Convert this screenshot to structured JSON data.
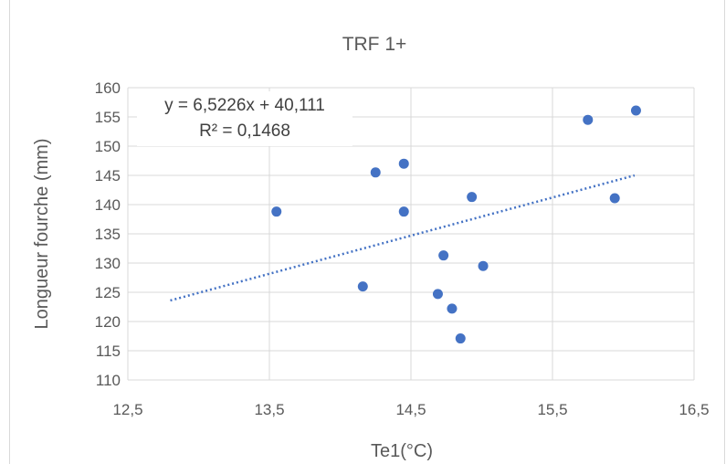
{
  "chart_data": {
    "type": "scatter",
    "title": "TRF 1+",
    "xlabel": "Te1(°C)",
    "ylabel": "Longueur fourche (mm)",
    "xlim": [
      12.5,
      16.5
    ],
    "ylim": [
      110,
      160
    ],
    "x_ticks": [
      "12,5",
      "13,5",
      "14,5",
      "15,5",
      "16,5"
    ],
    "y_ticks": [
      "110",
      "115",
      "120",
      "125",
      "130",
      "135",
      "140",
      "145",
      "150",
      "155",
      "160"
    ],
    "x_tick_values": [
      12.5,
      13.5,
      14.5,
      15.5,
      16.5
    ],
    "y_tick_values": [
      110,
      115,
      120,
      125,
      130,
      135,
      140,
      145,
      150,
      155,
      160
    ],
    "grid": true,
    "marker_color": "#4472c4",
    "trendline_color": "#4472c4",
    "points": [
      {
        "x": 13.55,
        "y": 138.8
      },
      {
        "x": 14.16,
        "y": 126.0
      },
      {
        "x": 14.25,
        "y": 145.5
      },
      {
        "x": 14.45,
        "y": 147.0
      },
      {
        "x": 14.45,
        "y": 138.8
      },
      {
        "x": 14.69,
        "y": 124.7
      },
      {
        "x": 14.73,
        "y": 131.3
      },
      {
        "x": 14.79,
        "y": 122.2
      },
      {
        "x": 14.85,
        "y": 117.1
      },
      {
        "x": 14.93,
        "y": 141.3
      },
      {
        "x": 15.01,
        "y": 129.5
      },
      {
        "x": 15.75,
        "y": 154.5
      },
      {
        "x": 15.94,
        "y": 141.1
      },
      {
        "x": 16.09,
        "y": 156.1
      }
    ],
    "trendline": {
      "slope": 6.5226,
      "intercept": 40.111,
      "x_range": [
        12.8,
        16.08
      ],
      "equation": "y = 6,5226x + 40,111",
      "r_squared": "R² = 0,1468"
    }
  }
}
